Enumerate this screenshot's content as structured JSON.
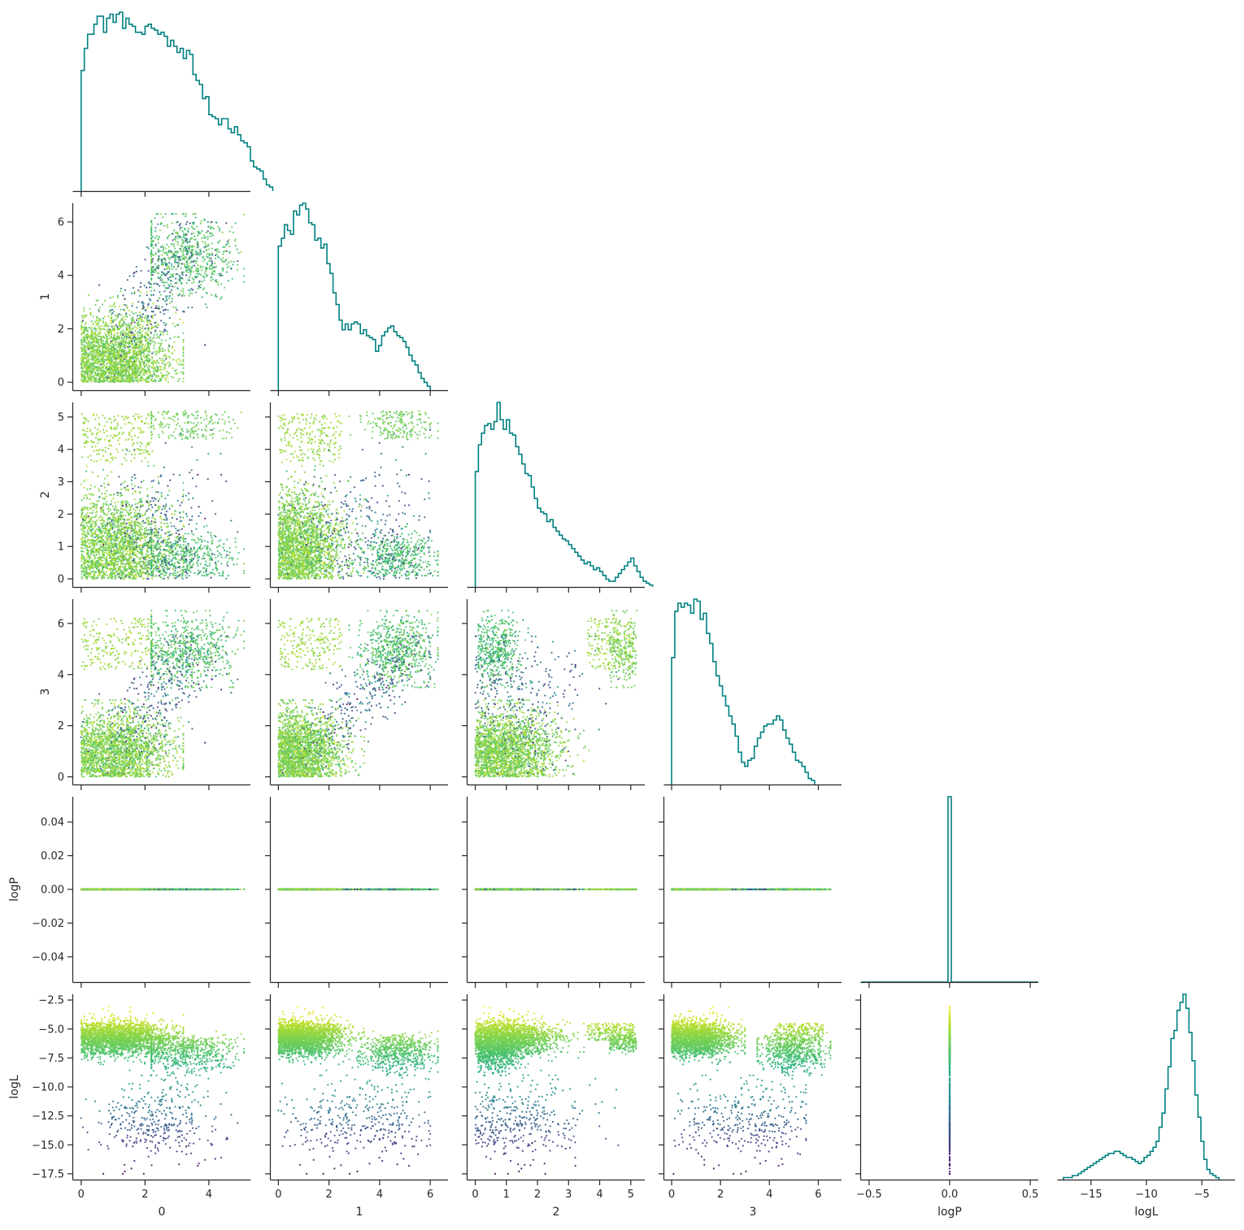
{
  "chart_data": {
    "type": "scatter",
    "layout": "corner-pairplot",
    "variables": [
      "0",
      "1",
      "2",
      "3",
      "logP",
      "logL"
    ],
    "colormap": "viridis",
    "color_by": "logL",
    "diag_type": "step-histogram",
    "hist_color": "#008080",
    "axes": {
      "0": {
        "range": [
          -0.25,
          5.3
        ],
        "ticks": [
          0,
          2,
          4
        ],
        "tick_labels": [
          "0",
          "2",
          "4"
        ]
      },
      "1": {
        "range": [
          -0.3,
          6.7
        ],
        "ticks": [
          0,
          2,
          4,
          6
        ],
        "tick_labels": [
          "0",
          "2",
          "4",
          "6"
        ]
      },
      "2": {
        "range": [
          -0.25,
          5.45
        ],
        "ticks": [
          0,
          1,
          2,
          3,
          4,
          5
        ],
        "tick_labels": [
          "0",
          "1",
          "2",
          "3",
          "4",
          "5"
        ]
      },
      "3": {
        "range": [
          -0.3,
          6.95
        ],
        "ticks": [
          0,
          2,
          4,
          6
        ],
        "tick_labels": [
          "0",
          "2",
          "4",
          "6"
        ]
      },
      "logP": {
        "range": [
          -0.055,
          0.055
        ],
        "ticks": [
          -0.04,
          -0.02,
          0,
          0.02,
          0.04
        ],
        "tick_labels": [
          "−0.04",
          "−0.02",
          "0.00",
          "0.02",
          "0.04"
        ],
        "x_range": [
          -0.55,
          0.55
        ],
        "x_ticks": [
          -0.5,
          0,
          0.5
        ],
        "x_tick_labels": [
          "−0.5",
          "0.0",
          "0.5"
        ]
      },
      "logL": {
        "range": [
          -18.0,
          -2.0
        ],
        "ticks": [
          -17.5,
          -15,
          -12.5,
          -10,
          -7.5,
          -5,
          -2.5
        ],
        "tick_labels": [
          "−17.5",
          "−15.0",
          "−12.5",
          "−10.0",
          "−7.5",
          "−5.0",
          "−2.5"
        ],
        "x_ticks": [
          -15,
          -10,
          -5
        ],
        "x_tick_labels": [
          "−15",
          "−10",
          "−5"
        ]
      }
    },
    "axis_labels": {
      "x": [
        "0",
        "1",
        "2",
        "3",
        "logP",
        "logL"
      ],
      "y": [
        "",
        "1",
        "2",
        "3",
        "logP",
        "logL"
      ]
    },
    "histograms": {
      "0": {
        "bin_start": 0.0,
        "bin_width": 0.1,
        "counts": [
          60,
          71,
          78,
          78,
          83,
          87,
          87,
          79,
          86,
          88,
          84,
          88,
          89,
          81,
          86,
          83,
          82,
          79,
          79,
          78,
          82,
          83,
          81,
          80,
          78,
          79,
          77,
          72,
          75,
          72,
          69,
          71,
          66,
          70,
          68,
          58,
          55,
          53,
          46,
          47,
          38,
          37,
          36,
          33,
          36,
          36,
          31,
          29,
          32,
          28,
          25,
          24,
          22,
          15,
          12,
          11,
          10,
          6,
          3,
          2
        ]
      },
      "1": {
        "bin_start": 0.0,
        "bin_width": 0.12,
        "counts": [
          74,
          78,
          85,
          82,
          80,
          92,
          90,
          95,
          96,
          93,
          86,
          85,
          77,
          78,
          73,
          75,
          65,
          60,
          50,
          44,
          36,
          31,
          34,
          31,
          34,
          35,
          34,
          29,
          31,
          28,
          27,
          26,
          20,
          23,
          28,
          30,
          32,
          33,
          30,
          28,
          27,
          25,
          22,
          18,
          15,
          13,
          9,
          6,
          4,
          2
        ]
      },
      "2": {
        "bin_start": 0.0,
        "bin_width": 0.1,
        "counts": [
          60,
          74,
          80,
          84,
          85,
          82,
          86,
          96,
          87,
          82,
          87,
          80,
          79,
          73,
          69,
          64,
          59,
          58,
          52,
          46,
          41,
          39,
          38,
          34,
          35,
          31,
          29,
          27,
          25,
          24,
          22,
          20,
          18,
          16,
          14,
          12,
          13,
          11,
          9,
          10,
          8,
          6,
          4,
          3,
          3,
          5,
          7,
          9,
          11,
          13,
          15,
          11,
          8,
          5,
          3,
          2,
          1
        ]
      },
      "3": {
        "bin_start": 0.0,
        "bin_width": 0.13,
        "counts": [
          63,
          86,
          90,
          88,
          90,
          89,
          85,
          92,
          91,
          82,
          85,
          75,
          70,
          61,
          54,
          49,
          44,
          39,
          34,
          30,
          24,
          16,
          11,
          9,
          12,
          13,
          19,
          23,
          26,
          29,
          30,
          30,
          32,
          34,
          32,
          27,
          23,
          20,
          16,
          12,
          11,
          9,
          6,
          3,
          2
        ]
      },
      "logP": {
        "bin_start": -0.01,
        "bin_width": 0.02,
        "counts": [
          100
        ]
      },
      "logL": {
        "bin_start": -17.5,
        "bin_width": 0.27,
        "counts": [
          1,
          1,
          1,
          2,
          2,
          3,
          4,
          5,
          6,
          7,
          8,
          9,
          10,
          11,
          12,
          13,
          13,
          14,
          14,
          13,
          12,
          11,
          11,
          10,
          9,
          8,
          9,
          11,
          12,
          14,
          16,
          19,
          26,
          33,
          45,
          56,
          70,
          74,
          84,
          88,
          92,
          85,
          73,
          59,
          42,
          31,
          19,
          10,
          5,
          3,
          2,
          1
        ]
      }
    },
    "scatter_style": {
      "marker_radius": 1.1,
      "opacity": 0.9
    }
  }
}
